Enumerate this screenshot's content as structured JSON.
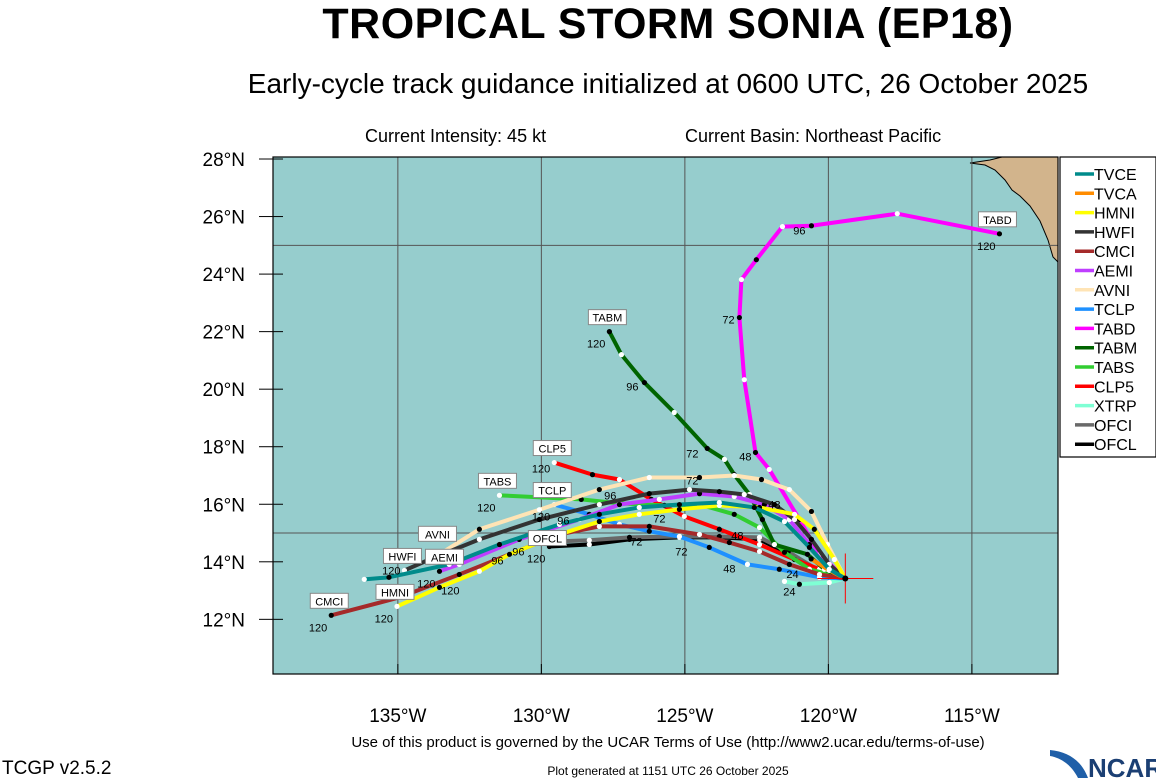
{
  "header": {
    "title": "TROPICAL STORM SONIA (EP18)",
    "subtitle": "Early-cycle track guidance initialized at 0600 UTC, 26 October 2025",
    "intensity": "Current Intensity: 45 kt",
    "basin": "Current Basin: Northeast Pacific"
  },
  "footer": {
    "terms": "Use of this product is governed by the UCAR Terms of Use (http://www2.ucar.edu/terms-of-use)",
    "version": "TCGP v2.5.2",
    "generated": "Plot generated at 1151 UTC   26 October 2025",
    "logo": "NCAR"
  },
  "colors": {
    "ocean": "#96cdcd",
    "land": "#d2b48c",
    "grid": "#555555",
    "start_marker": "#ff0000"
  },
  "chart_data": {
    "type": "map-tracks",
    "lon_range": [
      -139.35,
      -112.0
    ],
    "lat_range": [
      10.1,
      28.07
    ],
    "x_ticks": [
      {
        "v": -135,
        "label": "135°W"
      },
      {
        "v": -130,
        "label": "130°W"
      },
      {
        "v": -125,
        "label": "125°W"
      },
      {
        "v": -120,
        "label": "120°W"
      },
      {
        "v": -115,
        "label": "115°W"
      }
    ],
    "y_ticks": [
      {
        "v": 12,
        "label": "12°N"
      },
      {
        "v": 14,
        "label": "14°N"
      },
      {
        "v": 16,
        "label": "16°N"
      },
      {
        "v": 18,
        "label": "18°N"
      },
      {
        "v": 20,
        "label": "20°N"
      },
      {
        "v": 22,
        "label": "22°N"
      },
      {
        "v": 24,
        "label": "24°N"
      },
      {
        "v": 26,
        "label": "26°N"
      },
      {
        "v": 28,
        "label": "28°N"
      }
    ],
    "grid_lons": [
      -135,
      -130,
      -125,
      -120,
      -115
    ],
    "grid_lats": [
      15,
      25
    ],
    "start": {
      "lat": 13.42,
      "lon": -119.41
    },
    "end_hour_label": "120",
    "series": [
      {
        "name": "TVCE",
        "color": "#008b8b",
        "label": false,
        "points": [
          [
            -119.41,
            13.42
          ],
          [
            -119.97,
            13.74
          ],
          [
            -120.66,
            14.5
          ],
          [
            -121.53,
            15.4
          ],
          [
            -122.58,
            15.89
          ],
          [
            -123.8,
            16.06
          ],
          [
            -125.19,
            15.99
          ],
          [
            -126.59,
            15.89
          ],
          [
            -127.98,
            15.65
          ],
          [
            -129.37,
            15.3
          ],
          [
            -131.46,
            14.6
          ],
          [
            -133.21,
            13.91
          ],
          [
            -135.31,
            13.46
          ],
          [
            -136.17,
            13.39
          ]
        ]
      },
      {
        "name": "TVCA",
        "color": "#ff8c00",
        "label": false,
        "points": [
          [
            -119.41,
            13.42
          ],
          [
            -119.97,
            13.7
          ],
          [
            -120.6,
            14.1
          ]
        ]
      },
      {
        "name": "HMNI",
        "color": "#ffff00",
        "label": true,
        "points": [
          [
            -119.41,
            13.42
          ],
          [
            -119.79,
            14.08
          ],
          [
            -120.49,
            15.13
          ],
          [
            -121.18,
            15.65
          ],
          [
            -122.4,
            15.89
          ],
          [
            -123.8,
            15.96
          ],
          [
            -125.19,
            15.82
          ],
          [
            -126.59,
            15.65
          ],
          [
            -127.98,
            15.4
          ],
          [
            -129.37,
            14.95
          ],
          [
            -131.11,
            14.26
          ],
          [
            -132.16,
            13.67
          ],
          [
            -133.55,
            13.11
          ],
          [
            -135.03,
            12.45
          ]
        ]
      },
      {
        "name": "HWFI",
        "color": "#333333",
        "label": true,
        "points": [
          [
            -119.41,
            13.42
          ],
          [
            -119.97,
            13.91
          ],
          [
            -120.59,
            14.78
          ],
          [
            -121.18,
            15.47
          ],
          [
            -121.88,
            15.99
          ],
          [
            -122.93,
            16.34
          ],
          [
            -123.8,
            16.44
          ],
          [
            -124.84,
            16.51
          ],
          [
            -126.24,
            16.37
          ],
          [
            -127.98,
            15.99
          ],
          [
            -130.07,
            15.47
          ],
          [
            -132.16,
            14.78
          ],
          [
            -133.9,
            14.08
          ],
          [
            -134.77,
            13.7
          ]
        ]
      },
      {
        "name": "CMCI",
        "color": "#a52a2a",
        "label": true,
        "points": [
          [
            -119.41,
            13.42
          ],
          [
            -120.31,
            13.56
          ],
          [
            -121.36,
            13.91
          ],
          [
            -122.4,
            14.36
          ],
          [
            -123.45,
            14.67
          ],
          [
            -124.49,
            14.95
          ],
          [
            -126.24,
            15.23
          ],
          [
            -127.98,
            15.23
          ],
          [
            -129.37,
            14.95
          ],
          [
            -131.11,
            14.26
          ],
          [
            -132.86,
            13.56
          ],
          [
            -134.95,
            12.76
          ],
          [
            -137.32,
            12.14
          ]
        ]
      },
      {
        "name": "AEMI",
        "color": "#bf3eff",
        "label": true,
        "points": [
          [
            -119.41,
            13.42
          ],
          [
            -120.03,
            13.74
          ],
          [
            -120.66,
            14.6
          ],
          [
            -121.36,
            15.47
          ],
          [
            -122.23,
            15.99
          ],
          [
            -123.28,
            16.27
          ],
          [
            -124.49,
            16.37
          ],
          [
            -125.89,
            16.17
          ],
          [
            -127.28,
            15.99
          ],
          [
            -128.68,
            15.47
          ],
          [
            -130.77,
            14.78
          ],
          [
            -132.86,
            13.91
          ],
          [
            -133.55,
            13.67
          ]
        ]
      },
      {
        "name": "AVNI",
        "color": "#ffe4b5",
        "label": true,
        "points": [
          [
            -119.41,
            13.42
          ],
          [
            -120.03,
            14.6
          ],
          [
            -120.59,
            15.75
          ],
          [
            -121.36,
            16.51
          ],
          [
            -122.33,
            16.86
          ],
          [
            -123.28,
            17.0
          ],
          [
            -124.49,
            16.93
          ],
          [
            -126.24,
            16.93
          ],
          [
            -127.98,
            16.51
          ],
          [
            -130.07,
            15.81
          ],
          [
            -132.16,
            15.13
          ],
          [
            -133.55,
            14.26
          ]
        ]
      },
      {
        "name": "TCLP",
        "color": "#1e90ff",
        "label": true,
        "points": [
          [
            -119.41,
            13.42
          ],
          [
            -120.31,
            13.46
          ],
          [
            -121.71,
            13.74
          ],
          [
            -122.82,
            13.91
          ],
          [
            -124.15,
            14.5
          ],
          [
            -125.19,
            14.88
          ],
          [
            -126.24,
            15.06
          ],
          [
            -127.28,
            15.3
          ],
          [
            -128.33,
            15.65
          ],
          [
            -129.55,
            15.99
          ]
        ]
      },
      {
        "name": "TABD",
        "color": "#ff00ff",
        "label": true,
        "points": [
          [
            -119.41,
            13.42
          ],
          [
            -120.31,
            14.26
          ],
          [
            -121.01,
            15.47
          ],
          [
            -122.06,
            17.21
          ],
          [
            -122.54,
            17.8
          ],
          [
            -122.93,
            20.33
          ],
          [
            -123.1,
            22.49
          ],
          [
            -123.03,
            23.81
          ],
          [
            -122.51,
            24.5
          ],
          [
            -121.6,
            25.65
          ],
          [
            -120.59,
            25.68
          ],
          [
            -117.6,
            26.1
          ],
          [
            -114.04,
            25.4
          ]
        ]
      },
      {
        "name": "TABM",
        "color": "#006400",
        "label": true,
        "points": [
          [
            -119.41,
            13.42
          ],
          [
            -120.14,
            13.74
          ],
          [
            -120.73,
            14.26
          ],
          [
            -121.88,
            14.6
          ],
          [
            -122.3,
            15.47
          ],
          [
            -122.75,
            16.34
          ],
          [
            -123.28,
            17.03
          ],
          [
            -123.62,
            17.56
          ],
          [
            -124.22,
            17.94
          ],
          [
            -125.37,
            19.19
          ],
          [
            -126.41,
            20.23
          ],
          [
            -127.21,
            21.2
          ],
          [
            -127.63,
            22.0
          ]
        ]
      },
      {
        "name": "TABS",
        "color": "#32cd32",
        "label": true,
        "points": [
          [
            -119.41,
            13.42
          ],
          [
            -120.66,
            13.74
          ],
          [
            -121.53,
            14.33
          ],
          [
            -122.4,
            15.19
          ],
          [
            -123.28,
            15.65
          ],
          [
            -124.49,
            15.99
          ],
          [
            -125.71,
            15.96
          ],
          [
            -127.28,
            16.03
          ],
          [
            -128.61,
            16.17
          ],
          [
            -131.46,
            16.31
          ]
        ]
      },
      {
        "name": "CLP5",
        "color": "#ff0000",
        "label": true,
        "points": [
          [
            -119.41,
            13.42
          ],
          [
            -120.31,
            13.74
          ],
          [
            -121.18,
            14.08
          ],
          [
            -122.4,
            14.6
          ],
          [
            -123.8,
            15.13
          ],
          [
            -125.02,
            15.58
          ],
          [
            -126.17,
            16.17
          ],
          [
            -127.28,
            16.86
          ],
          [
            -128.22,
            17.03
          ],
          [
            -129.55,
            17.45
          ]
        ]
      },
      {
        "name": "XTRP",
        "color": "#7fffd4",
        "label": false,
        "points": [
          [
            -119.41,
            13.42
          ],
          [
            -119.97,
            13.28
          ],
          [
            -121.01,
            13.22
          ],
          [
            -121.53,
            13.32
          ]
        ]
      },
      {
        "name": "OFCI",
        "color": "#696969",
        "label": false,
        "points": [
          [
            -119.41,
            13.42
          ],
          [
            -120.4,
            13.74
          ],
          [
            -121.4,
            14.35
          ],
          [
            -122.4,
            14.85
          ],
          [
            -123.8,
            14.88
          ],
          [
            -125.19,
            14.88
          ],
          [
            -126.93,
            14.85
          ],
          [
            -128.33,
            14.75
          ],
          [
            -129.72,
            14.7
          ]
        ]
      },
      {
        "name": "OFCL",
        "color": "#000000",
        "label": true,
        "points": [
          [
            -119.41,
            13.42
          ],
          [
            -120.31,
            13.67
          ],
          [
            -121.36,
            14.26
          ],
          [
            -122.4,
            14.78
          ],
          [
            -123.8,
            14.85
          ],
          [
            -125.19,
            14.85
          ],
          [
            -126.93,
            14.78
          ],
          [
            -128.33,
            14.6
          ],
          [
            -129.72,
            14.53
          ]
        ]
      }
    ],
    "hour_labels": [
      {
        "text": "96",
        "lon": -121.01,
        "lat": 25.37
      },
      {
        "text": "72",
        "lon": -123.48,
        "lat": 22.28
      },
      {
        "text": "48",
        "lon": -122.89,
        "lat": 17.52
      },
      {
        "text": "96",
        "lon": -126.83,
        "lat": 19.95
      },
      {
        "text": "72",
        "lon": -124.74,
        "lat": 17.63
      },
      {
        "text": "96",
        "lon": -127.6,
        "lat": 16.17
      },
      {
        "text": "72",
        "lon": -124.74,
        "lat": 16.69
      },
      {
        "text": "48",
        "lon": -123.17,
        "lat": 14.78
      },
      {
        "text": "48",
        "lon": -123.45,
        "lat": 13.63
      },
      {
        "text": "24",
        "lon": -121.36,
        "lat": 12.83
      },
      {
        "text": "96",
        "lon": -131.53,
        "lat": 13.91
      },
      {
        "text": "96",
        "lon": -129.72,
        "lat": 15.3
      },
      {
        "text": "96",
        "lon": -130.07,
        "lat": 14.22
      },
      {
        "text": "72",
        "lon": -125.12,
        "lat": 14.22
      },
      {
        "text": "72",
        "lon": -126.69,
        "lat": 14.57
      },
      {
        "text": "72",
        "lon": -125.89,
        "lat": 15.37
      },
      {
        "text": "48",
        "lon": -121.88,
        "lat": 15.85
      },
      {
        "text": "24",
        "lon": -121.25,
        "lat": 13.22
      }
    ]
  }
}
